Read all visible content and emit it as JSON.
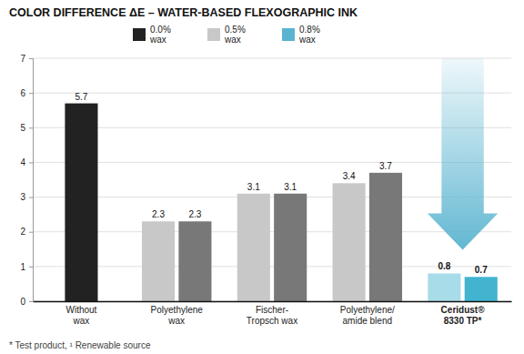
{
  "chart_data": {
    "type": "bar",
    "title": "COLOR DIFFERENCE ΔE – WATER-BASED FLEXOGRAPHIC INK",
    "footnote": "* Test product, ¹ Renewable source",
    "categories": [
      "Without\nwax",
      "Polyethylene\nwax",
      "Fischer-\nTropsch wax",
      "Polyethylene/\namide blend",
      "Ceridust®\n8330 TP*"
    ],
    "series": [
      {
        "name": "0.0%\nwax",
        "color": "#222222",
        "values": [
          5.7,
          null,
          null,
          null,
          null
        ]
      },
      {
        "name": "0.5%\nwax",
        "color": "#c8c8c8",
        "values": [
          null,
          2.3,
          3.1,
          3.4,
          0.8
        ],
        "colors": [
          null,
          "#c8c8c8",
          "#c8c8c8",
          "#c8c8c8",
          "#a8dce8"
        ]
      },
      {
        "name": "0.8%\nwax",
        "color": "#5ab4d0",
        "values": [
          null,
          2.3,
          3.1,
          3.7,
          0.7
        ],
        "colors": [
          null,
          "#787878",
          "#787878",
          "#787878",
          "#42b4d0"
        ]
      }
    ],
    "ylim": [
      0,
      7
    ],
    "yticks": [
      0,
      1,
      2,
      3,
      4,
      5,
      6,
      7
    ],
    "grid": true,
    "legend": "top",
    "data_labels": true
  }
}
